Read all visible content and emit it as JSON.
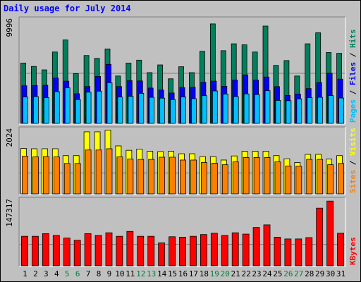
{
  "title": "Daily usage for July 2014",
  "colors": {
    "hits": "#00805c",
    "files": "#0000ff",
    "pages": "#00c0ff",
    "visits": "#ffff00",
    "sites": "#ff8000",
    "kbytes": "#ff0000",
    "weekday_label": "#000000",
    "weekend_label": "#008040",
    "background": "#c0c0c0"
  },
  "panels": {
    "hits": {
      "ymax_label": "9996",
      "legend": [
        {
          "text": "Pages",
          "color": "#00c0ff"
        },
        {
          "text": " / ",
          "color": "#000000"
        },
        {
          "text": "Files",
          "color": "#0000ff"
        },
        {
          "text": " / ",
          "color": "#000000"
        },
        {
          "text": "Hits",
          "color": "#00805c"
        }
      ]
    },
    "visits": {
      "ymax_label": "2024",
      "legend": [
        {
          "text": "Sites",
          "color": "#ff8000"
        },
        {
          "text": " / ",
          "color": "#000000"
        },
        {
          "text": "Visits",
          "color": "#ffff00"
        }
      ]
    },
    "kbytes": {
      "ymax_label": "147317",
      "legend": [
        {
          "text": "KBytes",
          "color": "#ff0000"
        }
      ]
    }
  },
  "chart_data": {
    "type": "bar",
    "title": "Daily usage for July 2014",
    "categories": [
      "1",
      "2",
      "3",
      "4",
      "5",
      "6",
      "7",
      "8",
      "9",
      "10",
      "11",
      "12",
      "13",
      "14",
      "15",
      "16",
      "17",
      "18",
      "19",
      "20",
      "21",
      "22",
      "23",
      "24",
      "25",
      "26",
      "27",
      "28",
      "29",
      "30",
      "31"
    ],
    "weekend_days": [
      "5",
      "6",
      "12",
      "13",
      "19",
      "20",
      "26",
      "27"
    ],
    "series": [
      {
        "name": "Hits",
        "panel": "hits",
        "values": [
          5860,
          5530,
          5200,
          6930,
          8100,
          4830,
          6590,
          6310,
          7230,
          4600,
          5860,
          6140,
          4930,
          5680,
          4330,
          5500,
          4930,
          7000,
          9660,
          7060,
          7730,
          7630,
          6930,
          9450,
          5630,
          6100,
          4600,
          7730,
          8800,
          6880,
          6800
        ]
      },
      {
        "name": "Files",
        "panel": "hits",
        "values": [
          3650,
          3670,
          3700,
          4400,
          4100,
          2880,
          3580,
          4560,
          5730,
          3580,
          4150,
          4120,
          3430,
          3230,
          2950,
          3480,
          3500,
          3990,
          4100,
          3600,
          4200,
          4710,
          4200,
          4500,
          3570,
          2710,
          2850,
          3380,
          3970,
          4870,
          4300
        ]
      },
      {
        "name": "Pages",
        "panel": "hits",
        "values": [
          2560,
          2600,
          2500,
          3080,
          3450,
          2310,
          3030,
          3130,
          3950,
          2560,
          2630,
          2920,
          2530,
          2450,
          2310,
          2570,
          2400,
          2690,
          3150,
          2850,
          2600,
          2860,
          2800,
          3170,
          2230,
          2200,
          2380,
          2500,
          2530,
          2700,
          2460
        ]
      },
      {
        "name": "Visits",
        "panel": "visits",
        "values": [
          1450,
          1440,
          1440,
          1440,
          1220,
          1220,
          1980,
          1980,
          2030,
          1530,
          1390,
          1430,
          1360,
          1350,
          1360,
          1280,
          1280,
          1190,
          1190,
          1080,
          1210,
          1360,
          1360,
          1360,
          1220,
          1120,
          1000,
          1260,
          1260,
          1110,
          1220
        ]
      },
      {
        "name": "Sites",
        "panel": "visits",
        "values": [
          1200,
          1180,
          1190,
          1180,
          970,
          970,
          1400,
          1400,
          1440,
          1180,
          1110,
          1100,
          1100,
          1170,
          1170,
          1080,
          1080,
          1000,
          980,
          930,
          1020,
          1160,
          1160,
          1160,
          1020,
          890,
          880,
          1100,
          1100,
          930,
          970
        ]
      },
      {
        "name": "KBytes",
        "panel": "kbytes",
        "values": [
          67000,
          67000,
          73000,
          69000,
          63000,
          58000,
          73000,
          69000,
          75000,
          67000,
          78000,
          67000,
          67000,
          52000,
          66000,
          65000,
          67000,
          71000,
          74000,
          69000,
          75000,
          72000,
          87000,
          93000,
          65000,
          61000,
          61000,
          64000,
          131000,
          147000,
          74000
        ]
      }
    ],
    "panel_ranges": {
      "hits": [
        0,
        9996
      ],
      "visits": [
        0,
        2024
      ],
      "kbytes": [
        0,
        147317
      ]
    },
    "grid": false,
    "legend_placement": "right (vertical)"
  }
}
